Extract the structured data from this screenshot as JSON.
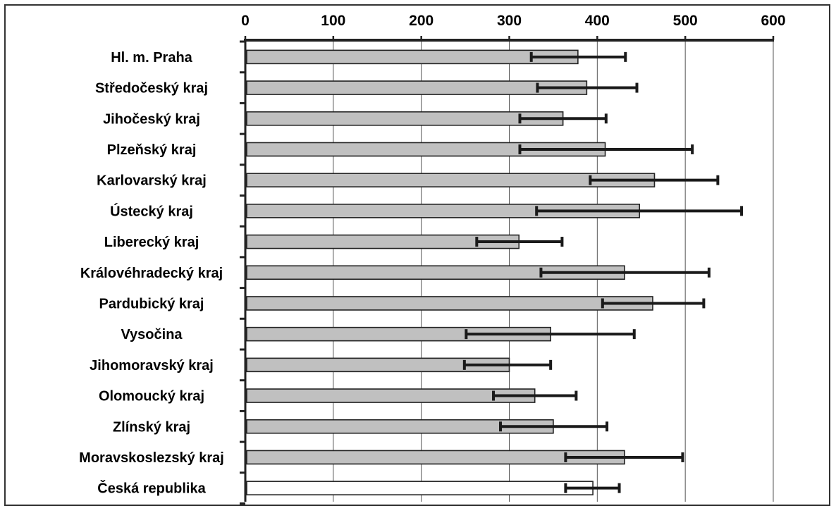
{
  "chart_data": {
    "type": "bar",
    "orientation": "horizontal",
    "title": "",
    "xlabel": "",
    "ylabel": "",
    "xlim": [
      0,
      600
    ],
    "x_ticks": [
      0,
      100,
      200,
      300,
      400,
      500,
      600
    ],
    "grid": "vertical gridlines",
    "axis_position": "top",
    "categories": [
      "Hl. m. Praha",
      "Středočeský kraj",
      "Jihočeský kraj",
      "Plzeňský kraj",
      "Karlovarský kraj",
      "Ústecký kraj",
      "Liberecký kraj",
      "Královéhradecký kraj",
      "Pardubický kraj",
      "Vysočina",
      "Jihomoravský kraj",
      "Olomoucký kraj",
      "Zlínský kraj",
      "Moravskoslezský kraj",
      "Česká republika"
    ],
    "values": [
      378,
      388,
      361,
      409,
      465,
      448,
      311,
      431,
      463,
      347,
      300,
      329,
      350,
      431,
      395
    ],
    "error_low": [
      325,
      332,
      312,
      312,
      392,
      331,
      263,
      336,
      406,
      251,
      249,
      282,
      290,
      364,
      364
    ],
    "error_high": [
      432,
      445,
      410,
      508,
      537,
      564,
      360,
      527,
      521,
      442,
      347,
      376,
      411,
      497,
      425
    ],
    "bar_colors": [
      "#c0c0c0",
      "#c0c0c0",
      "#c0c0c0",
      "#c0c0c0",
      "#c0c0c0",
      "#c0c0c0",
      "#c0c0c0",
      "#c0c0c0",
      "#c0c0c0",
      "#c0c0c0",
      "#c0c0c0",
      "#c0c0c0",
      "#c0c0c0",
      "#c0c0c0",
      "#ffffff"
    ],
    "colors": {
      "axis": "#222222",
      "grid": "#555555",
      "error_bar": "#1a1a1a",
      "bar_stroke": "#222222"
    }
  }
}
